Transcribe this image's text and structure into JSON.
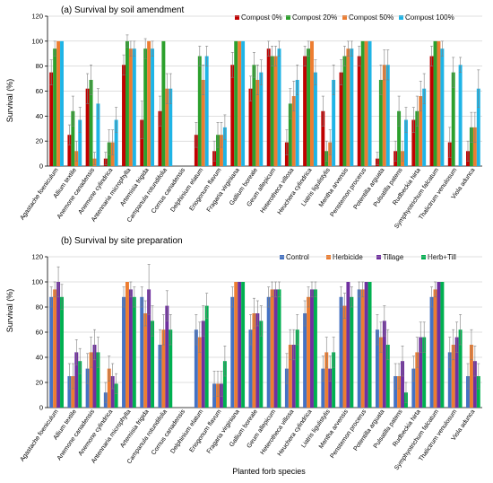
{
  "chart_data": [
    {
      "type": "bar",
      "title": "(a) Survival by soil amendment",
      "ylabel": "Survival (%)",
      "xlabel": "",
      "ylim": [
        0,
        120
      ],
      "yticks": [
        0,
        20,
        40,
        60,
        80,
        100,
        120
      ],
      "grid": true,
      "legend": "top-right",
      "categories": [
        "Agastache foeniculum",
        "Allium textile",
        "Anemone canadensis",
        "Anemone cylindrica",
        "Antennaria microphylla",
        "Artemisia frigida",
        "Campanula rotundifolia",
        "Cornus canadensis",
        "Delphinium elatum",
        "Eriogonum flavum",
        "Fragaria virginiana",
        "Gallium boreale",
        "Geum allepicum",
        "Heterotheca villosa",
        "Heuchera cylindrica",
        "Liatris ligulistylis",
        "Mentha arvensis",
        "Penstemon procerus",
        "Potentilla arguata",
        "Pulsatilla patens",
        "Rudbeckia hirta",
        "Symphyotrichum falcatum",
        "Thalictrum venulosum",
        "Viola adunca"
      ],
      "series": [
        {
          "name": "Compost 0%",
          "color": "#c00000",
          "values": [
            75,
            25,
            62,
            6,
            81,
            37,
            44,
            0,
            25,
            12,
            81,
            62,
            94,
            19,
            88,
            44,
            75,
            88,
            6,
            12,
            37,
            88,
            19,
            12
          ],
          "errors": [
            10,
            8,
            12,
            5,
            8,
            15,
            12,
            0,
            10,
            8,
            10,
            10,
            6,
            10,
            8,
            12,
            10,
            8,
            5,
            8,
            10,
            8,
            12,
            8
          ]
        },
        {
          "name": "Compost 20%",
          "color": "#2ca02c",
          "values": [
            94,
            44,
            69,
            19,
            100,
            94,
            100,
            0,
            88,
            25,
            100,
            81,
            88,
            50,
            94,
            12,
            88,
            100,
            69,
            44,
            44,
            100,
            75,
            31
          ],
          "errors": [
            6,
            12,
            12,
            10,
            5,
            8,
            0,
            0,
            8,
            10,
            0,
            10,
            8,
            12,
            6,
            8,
            8,
            0,
            12,
            12,
            12,
            0,
            12,
            12
          ]
        },
        {
          "name": "Compost 50%",
          "color": "#ed7d31",
          "values": [
            100,
            12,
            6,
            19,
            94,
            100,
            62,
            0,
            69,
            25,
            100,
            69,
            88,
            56,
            100,
            19,
            94,
            100,
            81,
            12,
            56,
            100,
            0,
            31
          ],
          "errors": [
            0,
            8,
            5,
            10,
            6,
            0,
            12,
            0,
            12,
            10,
            0,
            12,
            8,
            12,
            0,
            10,
            6,
            0,
            12,
            8,
            12,
            0,
            0,
            12
          ]
        },
        {
          "name": "Compost 100%",
          "color": "#1fb4e6",
          "values": [
            100,
            37,
            50,
            37,
            94,
            94,
            62,
            0,
            88,
            31,
            100,
            75,
            94,
            69,
            75,
            69,
            94,
            100,
            81,
            37,
            62,
            94,
            81,
            62
          ],
          "errors": [
            0,
            10,
            12,
            10,
            6,
            6,
            12,
            0,
            8,
            10,
            0,
            10,
            6,
            12,
            10,
            12,
            6,
            0,
            12,
            10,
            12,
            6,
            6,
            15
          ]
        }
      ]
    },
    {
      "type": "bar",
      "title": "(b) Survival by site preparation",
      "ylabel": "Survival (%)",
      "xlabel": "Planted forb species",
      "ylim": [
        0,
        120
      ],
      "yticks": [
        0,
        20,
        40,
        60,
        80,
        100,
        120
      ],
      "grid": true,
      "legend": "top-right",
      "categories": [
        "Agastache foeniculum",
        "Allium textile",
        "Anemone canadensis",
        "Anemone cylindrica",
        "Antennaria microphylla",
        "Artemisia frigida",
        "Campanula rotundifolia",
        "Cornus canadensis",
        "Delphinium elatum",
        "Eriogonum flavum",
        "Fragaria virginiana",
        "Gallium boreale",
        "Geum allepicum",
        "Heterotheca villosa",
        "Heuchera cylindrica",
        "Liatris ligulistylis",
        "Mentha arvensis",
        "Penstemon procerus",
        "Potentilla arguata",
        "Pulsatilla patens",
        "Rudbeckia hirta",
        "Symphyotrichum falcatum",
        "Thalictrum venulosum",
        "Viola adunca"
      ],
      "series": [
        {
          "name": "Control",
          "color": "#4472c4",
          "values": [
            88,
            25,
            31,
            12,
            88,
            88,
            50,
            0,
            62,
            19,
            88,
            62,
            88,
            31,
            75,
            31,
            88,
            94,
            62,
            25,
            31,
            88,
            44,
            25
          ],
          "errors": [
            8,
            10,
            12,
            8,
            8,
            8,
            12,
            0,
            12,
            10,
            8,
            12,
            8,
            12,
            10,
            10,
            8,
            6,
            12,
            10,
            10,
            8,
            12,
            10
          ]
        },
        {
          "name": "Herbicide",
          "color": "#ed7d31",
          "values": [
            94,
            25,
            44,
            31,
            100,
            75,
            62,
            0,
            56,
            19,
            100,
            75,
            94,
            50,
            88,
            44,
            81,
            94,
            56,
            25,
            44,
            94,
            50,
            50
          ],
          "errors": [
            6,
            10,
            12,
            10,
            0,
            10,
            12,
            0,
            12,
            10,
            0,
            12,
            6,
            12,
            8,
            12,
            10,
            6,
            12,
            10,
            12,
            6,
            12,
            12
          ]
        },
        {
          "name": "Tillage",
          "color": "#7030a0",
          "values": [
            100,
            44,
            50,
            25,
            94,
            94,
            81,
            0,
            69,
            19,
            100,
            75,
            94,
            50,
            94,
            31,
            100,
            100,
            69,
            37,
            56,
            100,
            56,
            37
          ],
          "errors": [
            12,
            10,
            12,
            10,
            6,
            20,
            12,
            0,
            12,
            10,
            0,
            10,
            6,
            12,
            6,
            10,
            0,
            0,
            12,
            12,
            12,
            0,
            12,
            12
          ]
        },
        {
          "name": "Herb+Till",
          "color": "#00b050",
          "values": [
            88,
            37,
            44,
            19,
            88,
            69,
            62,
            0,
            81,
            37,
            100,
            69,
            94,
            62,
            94,
            44,
            88,
            100,
            50,
            12,
            56,
            100,
            62,
            25
          ],
          "errors": [
            10,
            10,
            12,
            8,
            8,
            12,
            12,
            0,
            10,
            12,
            0,
            12,
            6,
            12,
            6,
            12,
            8,
            0,
            12,
            8,
            12,
            0,
            12,
            10
          ]
        }
      ]
    }
  ]
}
